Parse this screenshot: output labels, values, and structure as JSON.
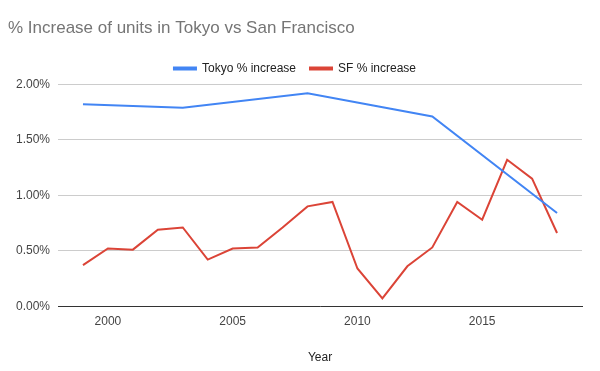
{
  "chart_data": {
    "type": "line",
    "title": "% Increase of units in Tokyo vs San Francisco",
    "x_label": "Year",
    "series": [
      {
        "name": "Tokyo % increase",
        "color": "#4285f4",
        "x": [
          1999,
          2003,
          2008,
          2013,
          2018
        ],
        "values": [
          1.82,
          1.79,
          1.92,
          1.71,
          0.84
        ]
      },
      {
        "name": "SF % increase",
        "color": "#db4437",
        "x": [
          1999,
          2000,
          2001,
          2002,
          2003,
          2004,
          2005,
          2006,
          2007,
          2008,
          2009,
          2010,
          2011,
          2012,
          2013,
          2014,
          2015,
          2016,
          2017,
          2018
        ],
        "values": [
          0.37,
          0.52,
          0.51,
          0.69,
          0.71,
          0.42,
          0.52,
          0.53,
          0.71,
          0.9,
          0.94,
          0.34,
          0.07,
          0.36,
          0.53,
          0.94,
          0.78,
          1.32,
          1.15,
          0.66
        ]
      }
    ],
    "xlim": [
      1998,
      2019
    ],
    "xticks": [
      2000,
      2005,
      2010,
      2015
    ],
    "ylim": [
      0,
      2
    ],
    "yticks": [
      {
        "value": 0,
        "label": "0.00%"
      },
      {
        "value": 0.5,
        "label": "0.50%"
      },
      {
        "value": 1,
        "label": "1.00%"
      },
      {
        "value": 1.5,
        "label": "1.50%"
      },
      {
        "value": 2,
        "label": "2.00%"
      }
    ],
    "grid": true,
    "legend": "top"
  }
}
